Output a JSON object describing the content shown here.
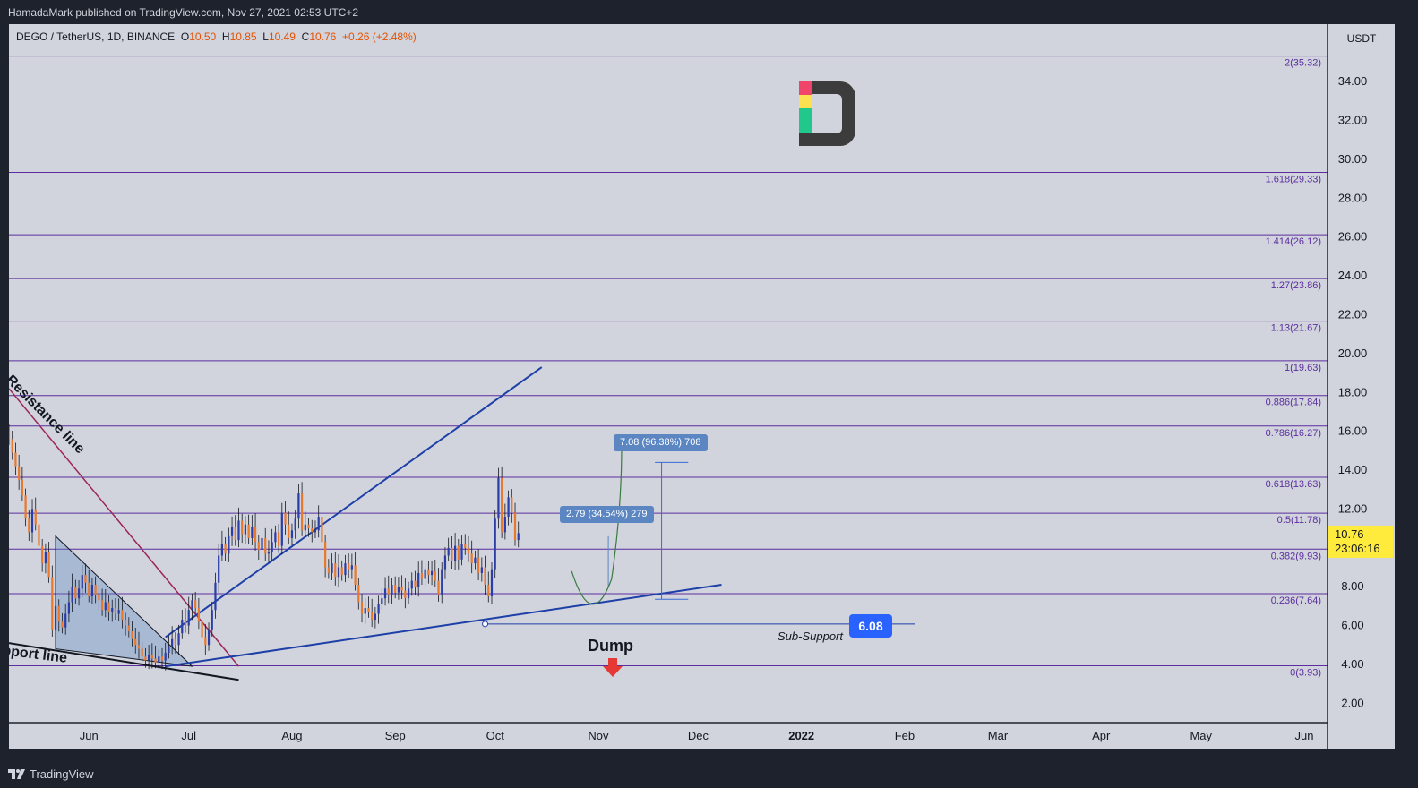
{
  "header": {
    "publisher": "HamadaMark published on TradingView.com, Nov 27, 2021 02:53 UTC+2"
  },
  "footer": {
    "brand": "TradingView"
  },
  "legend": {
    "symbol": "DEGO / TetherUS, 1D, BINANCE",
    "o_label": "O",
    "o": "10.50",
    "h_label": "H",
    "h": "10.85",
    "l_label": "L",
    "l": "10.49",
    "c_label": "C",
    "c": "10.76",
    "change": "+0.26 (+2.48%)"
  },
  "colors": {
    "chart_bg": "#d1d4dc",
    "frame_bg": "#1e222d",
    "fib_line": "#5b2da0",
    "candle_up": "#2b3ea8",
    "candle_down": "#e8792c",
    "trend_blue": "#1d3fa8",
    "resistance": "#9c2459",
    "price_badge": "#ffeb3b",
    "level_badge": "#2962ff"
  },
  "price_badge": {
    "price": "10.76",
    "countdown": "23:06:16"
  },
  "sub_support": {
    "label": "Sub-Support",
    "value": "6.08",
    "price": 6.08
  },
  "measures": [
    {
      "text": "2.79 (34.54%) 279"
    },
    {
      "text": "7.08 (96.38%) 708"
    }
  ],
  "annotations": {
    "resistance": "Resistance line",
    "support": "pport line",
    "dump": "Dump"
  },
  "chart_data": {
    "type": "candlestick",
    "symbol": "DEGO / TetherUS",
    "interval": "1D",
    "exchange": "BINANCE",
    "y_unit": "USDT",
    "ylim": [
      1.0,
      36.5
    ],
    "y_ticks": [
      "2.00",
      "4.00",
      "6.00",
      "8.00",
      "10.00",
      "12.00",
      "14.00",
      "16.00",
      "18.00",
      "20.00",
      "22.00",
      "24.00",
      "26.00",
      "28.00",
      "30.00",
      "32.00",
      "34.00"
    ],
    "y_tick_values": [
      2,
      4,
      6,
      8,
      10,
      12,
      14,
      16,
      18,
      20,
      22,
      24,
      26,
      28,
      30,
      32,
      34
    ],
    "x_ticks": [
      "Jun",
      "Jul",
      "Aug",
      "Sep",
      "Oct",
      "Nov",
      "Dec",
      "2022",
      "Feb",
      "Mar",
      "Apr",
      "May",
      "Jun"
    ],
    "x_tick_dates": [
      "2021-06-01",
      "2021-07-01",
      "2021-08-01",
      "2021-09-01",
      "2021-10-01",
      "2021-11-01",
      "2021-12-01",
      "2022-01-01",
      "2022-02-01",
      "2022-03-01",
      "2022-04-01",
      "2022-05-01",
      "2022-06-01"
    ],
    "x_range": [
      "2021-05-08",
      "2022-06-08"
    ],
    "fib_levels": [
      {
        "label": "2(35.32)",
        "price": 35.32
      },
      {
        "label": "1.618(29.33)",
        "price": 29.33
      },
      {
        "label": "1.414(26.12)",
        "price": 26.12
      },
      {
        "label": "1.27(23.86)",
        "price": 23.86
      },
      {
        "label": "1.13(21.67)",
        "price": 21.67
      },
      {
        "label": "1(19.63)",
        "price": 19.63
      },
      {
        "label": "0.886(17.84)",
        "price": 17.84
      },
      {
        "label": "0.786(16.27)",
        "price": 16.27
      },
      {
        "label": "0.618(13.63)",
        "price": 13.63
      },
      {
        "label": "0.5(11.78)",
        "price": 11.78
      },
      {
        "label": "0.382(9.93)",
        "price": 9.93
      },
      {
        "label": "0.236(7.64)",
        "price": 7.64
      },
      {
        "label": "0(3.93)",
        "price": 3.93
      }
    ],
    "candles_start": "2021-05-08",
    "closes": [
      15.6,
      14.9,
      14.2,
      13.5,
      12.7,
      11.5,
      10.8,
      12.0,
      11.2,
      10.1,
      9.2,
      9.8,
      8.5,
      5.8,
      7.0,
      6.2,
      5.9,
      6.6,
      7.2,
      8.0,
      7.4,
      7.9,
      8.6,
      8.2,
      7.5,
      8.1,
      7.6,
      7.3,
      6.8,
      7.2,
      6.7,
      6.9,
      6.6,
      6.8,
      6.3,
      6.0,
      5.7,
      5.3,
      5.0,
      4.8,
      4.4,
      4.2,
      4.5,
      4.3,
      4.1,
      4.4,
      4.2,
      4.6,
      4.9,
      5.3,
      5.0,
      5.6,
      6.3,
      6.0,
      6.8,
      7.3,
      6.9,
      6.2,
      5.4,
      5.0,
      5.8,
      6.8,
      8.2,
      9.6,
      10.2,
      9.7,
      10.6,
      11.1,
      10.4,
      11.4,
      10.7,
      11.2,
      10.5,
      11.1,
      10.3,
      9.9,
      10.5,
      9.7,
      9.8,
      10.3,
      10.8,
      10.1,
      11.8,
      11.2,
      10.5,
      10.9,
      11.5,
      12.8,
      10.9,
      11.2,
      11.0,
      10.8,
      10.9,
      11.6,
      10.3,
      9.0,
      8.7,
      9.2,
      8.5,
      9.0,
      8.6,
      9.2,
      8.9,
      9.1,
      8.1,
      7.2,
      6.6,
      6.9,
      6.7,
      6.3,
      6.6,
      7.1,
      7.4,
      7.9,
      7.6,
      8.1,
      7.7,
      8.0,
      7.8,
      7.4,
      7.9,
      8.3,
      8.0,
      8.7,
      8.4,
      8.9,
      8.6,
      8.8,
      8.3,
      7.6,
      8.9,
      9.6,
      10.0,
      9.3,
      10.1,
      9.4,
      10.2,
      10.0,
      9.7,
      9.2,
      9.5,
      8.7,
      9.0,
      8.1,
      7.5,
      8.9,
      11.5,
      13.6,
      10.8,
      11.6,
      12.6,
      11.8,
      10.4,
      10.76
    ]
  }
}
